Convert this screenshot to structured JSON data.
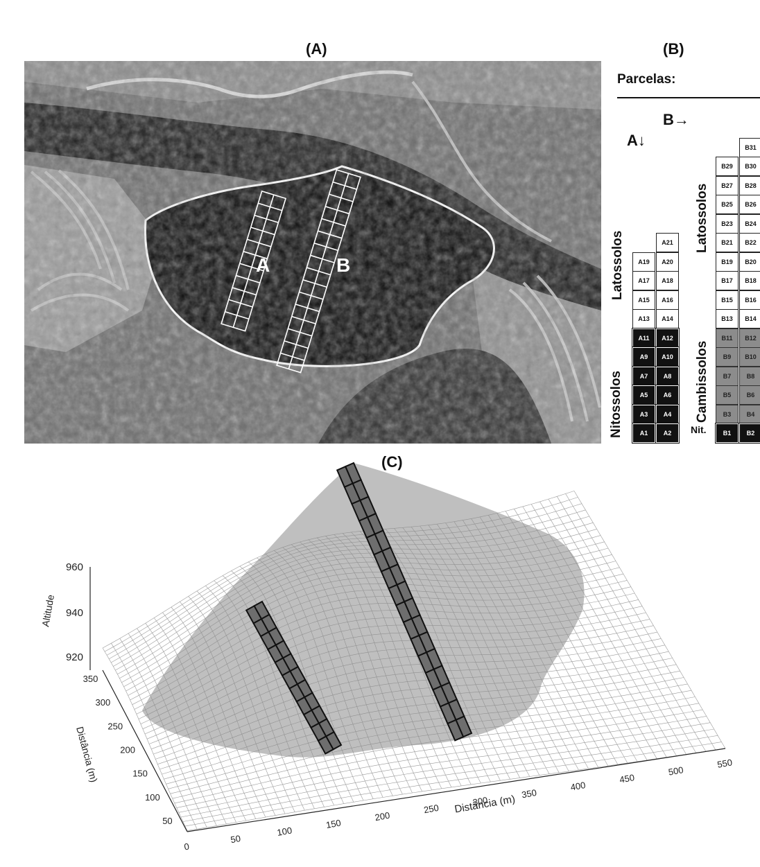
{
  "panels": {
    "a": "(A)",
    "b": "(B)",
    "c": "(C)"
  },
  "photo": {
    "transect_a": "A",
    "transect_b": "B"
  },
  "scheme": {
    "title": "Parcelas:",
    "arrow_b": "B→",
    "arrow_a": "A↓",
    "soil_labels": {
      "latossolos_a": "Latossolos",
      "nitossolos_a": "Nitossolos",
      "latossolos_b": "Latossolos",
      "cambissolos_b": "Cambissolos",
      "nit_b": "Nit."
    },
    "col_a_left": [
      "A19",
      "A17",
      "A15",
      "A13",
      "A11",
      "A9",
      "A7",
      "A5",
      "A3",
      "A1"
    ],
    "col_a_right": [
      "A21",
      "A20",
      "A18",
      "A16",
      "A14",
      "A12",
      "A10",
      "A8",
      "A6",
      "A4",
      "A2"
    ],
    "col_b_left": [
      "B29",
      "B27",
      "B25",
      "B23",
      "B21",
      "B19",
      "B17",
      "B15",
      "B13",
      "B11",
      "B9",
      "B7",
      "B5",
      "B3",
      "B1"
    ],
    "col_b_right": [
      "B31",
      "B30",
      "B28",
      "B26",
      "B24",
      "B22",
      "B20",
      "B18",
      "B16",
      "B14",
      "B12",
      "B10",
      "B8",
      "B6",
      "B4",
      "B2"
    ]
  },
  "surface": {
    "z_label": "Altitude",
    "z_ticks": [
      "960",
      "940",
      "920"
    ],
    "y_label": "Distância (m)",
    "y_ticks": [
      "350",
      "300",
      "250",
      "200",
      "150",
      "100",
      "50"
    ],
    "x_label": "Distância (m)",
    "x_ticks": [
      "0",
      "50",
      "100",
      "150",
      "200",
      "250",
      "300",
      "350",
      "400",
      "450",
      "500",
      "550"
    ]
  }
}
